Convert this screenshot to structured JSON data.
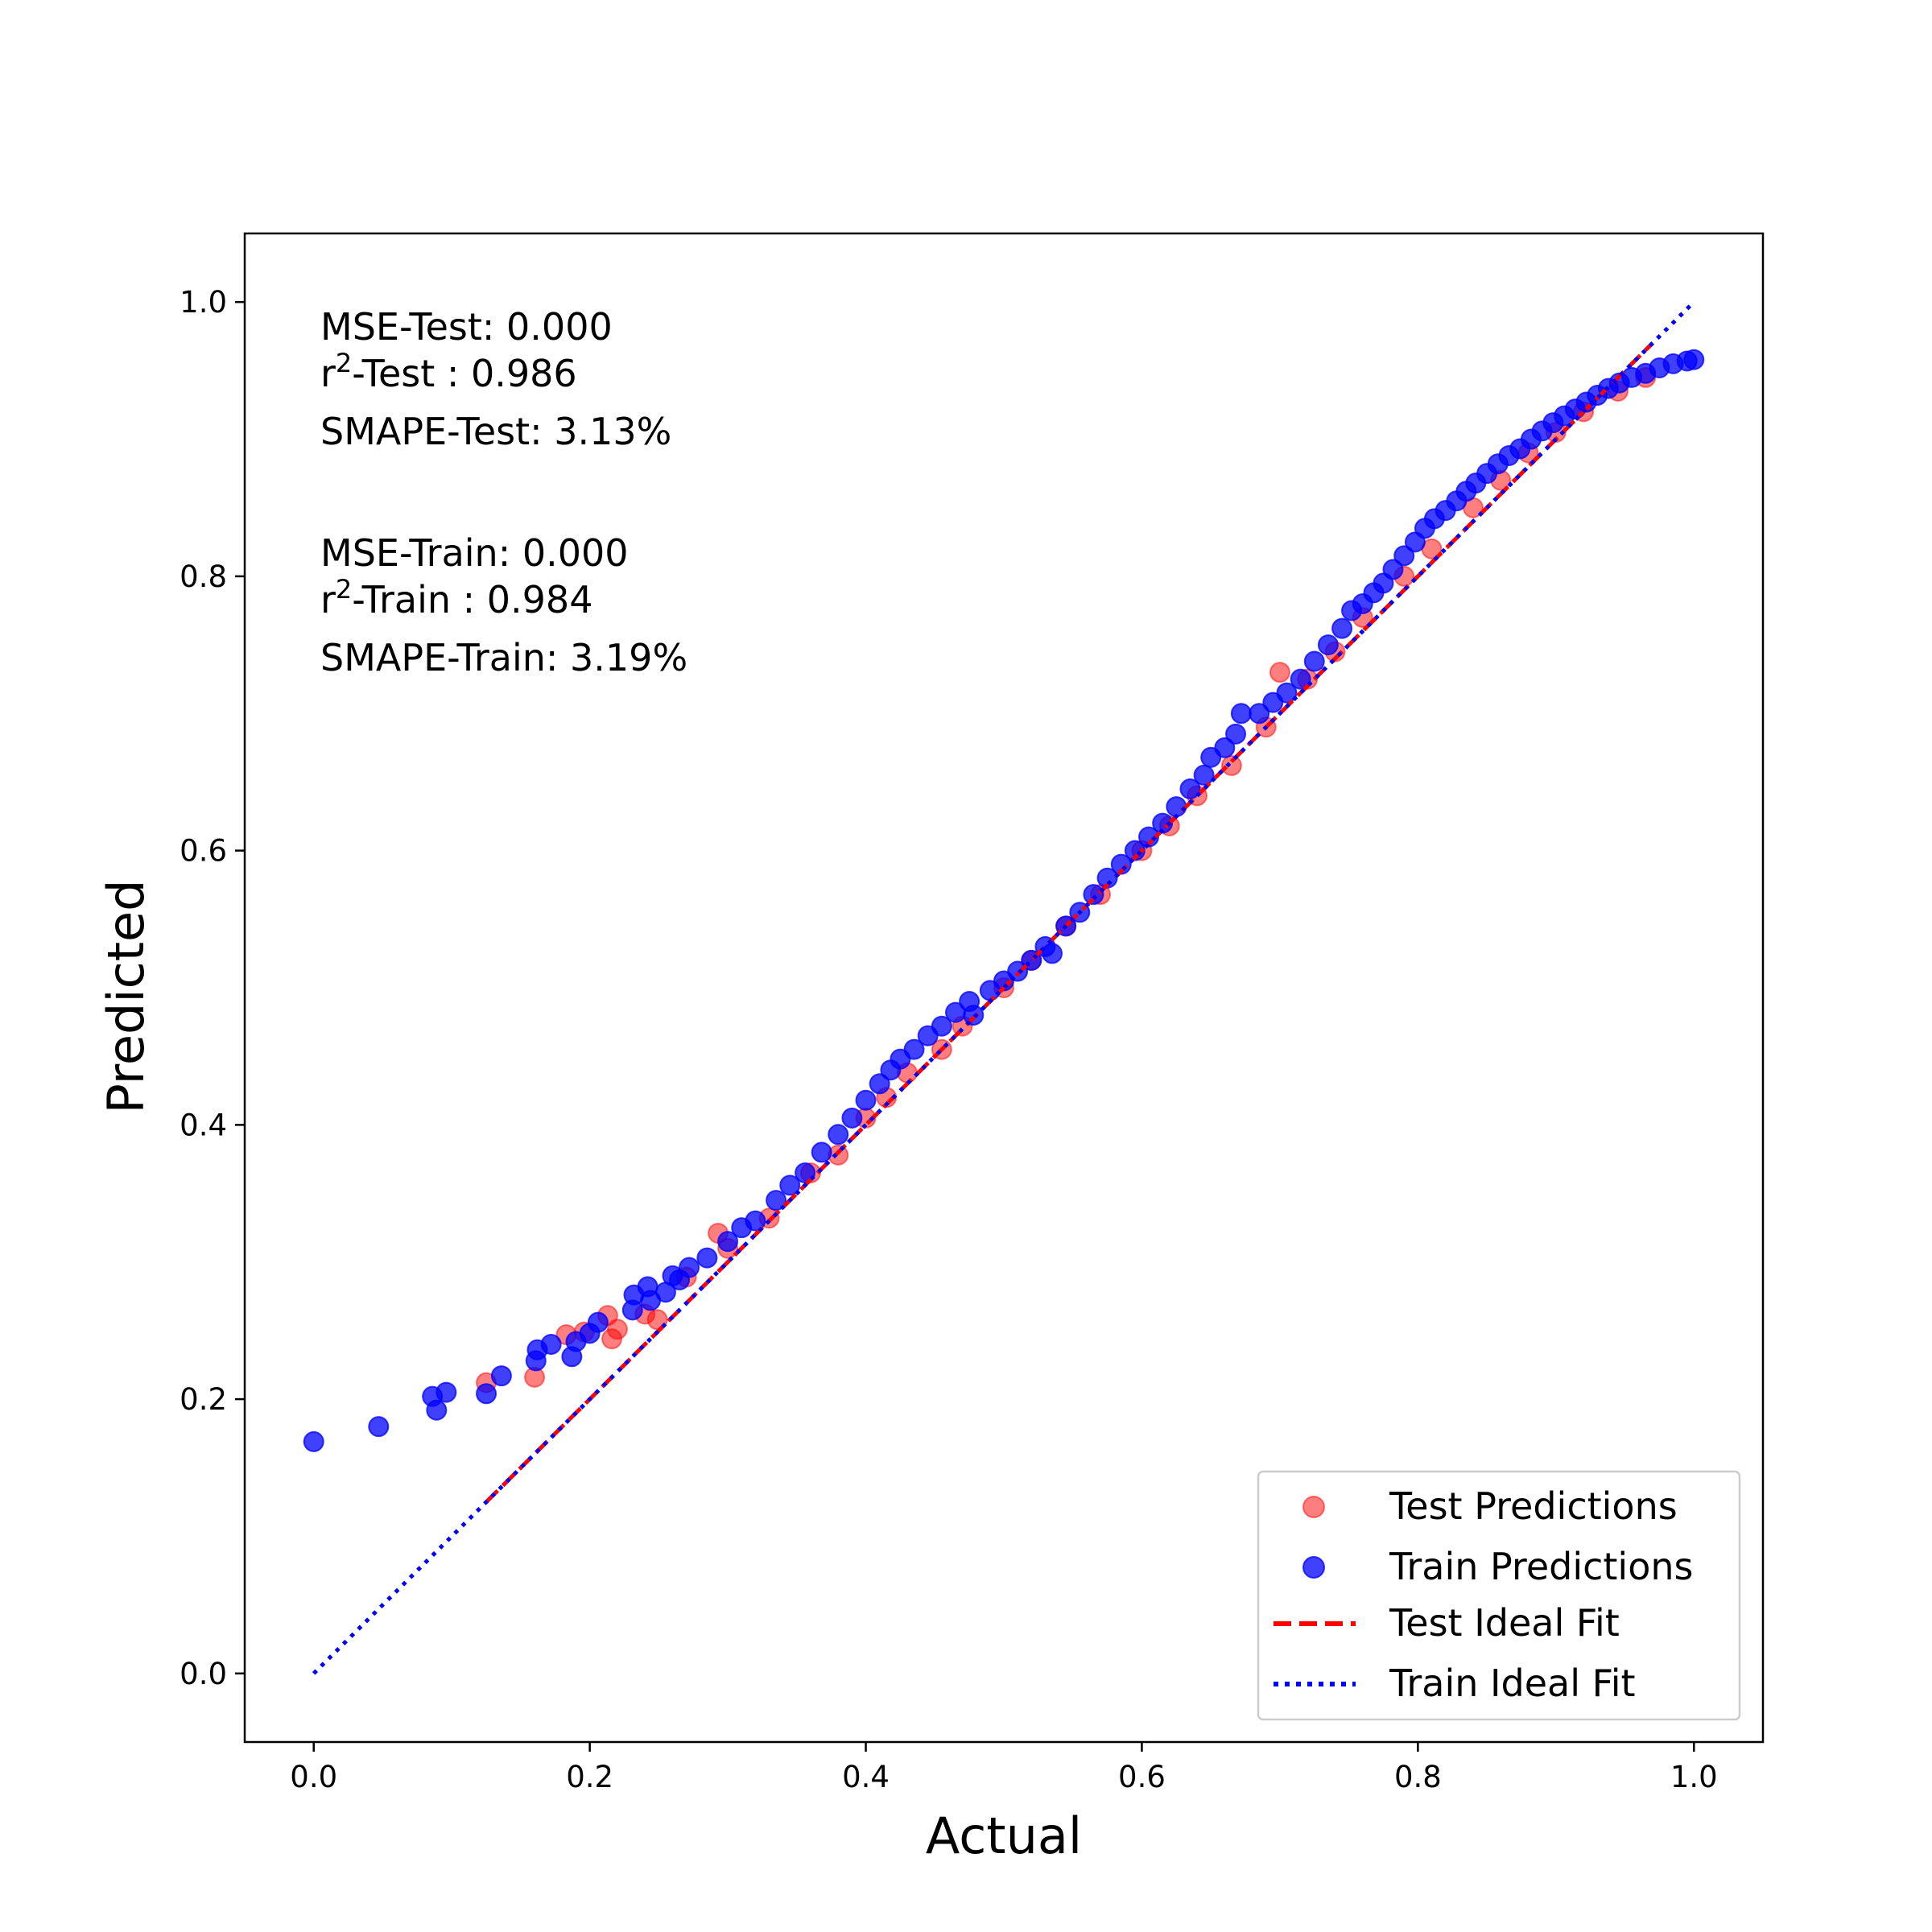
{
  "chart_data": {
    "type": "scatter",
    "xlabel": "Actual",
    "ylabel": "Predicted",
    "xlim": [
      -0.05,
      1.05
    ],
    "ylim": [
      -0.05,
      1.05
    ],
    "xticks": [
      "0.0",
      "0.2",
      "0.4",
      "0.6",
      "0.8",
      "1.0"
    ],
    "yticks": [
      "0.0",
      "0.2",
      "0.4",
      "0.6",
      "0.8",
      "1.0"
    ],
    "grid": false,
    "legend_placement": "lower-right",
    "annotations": {
      "mse_test": "MSE-Test: 0.000",
      "r2_test_prefix": "r",
      "r2_test_sup": "2",
      "r2_test_suffix": "-Test : 0.986",
      "smape_test": "SMAPE-Test: 3.13%",
      "mse_train": "MSE-Train: 0.000",
      "r2_train_prefix": "r",
      "r2_train_sup": "2",
      "r2_train_suffix": "-Train : 0.984",
      "smape_train": "SMAPE-Train: 3.19%"
    },
    "series": [
      {
        "name": "Test Predictions",
        "kind": "scatter",
        "color": "#ff0000",
        "opacity": 0.5,
        "points": [
          [
            0.125,
            0.212
          ],
          [
            0.16,
            0.216
          ],
          [
            0.183,
            0.247
          ],
          [
            0.196,
            0.249
          ],
          [
            0.213,
            0.261
          ],
          [
            0.216,
            0.244
          ],
          [
            0.22,
            0.251
          ],
          [
            0.24,
            0.262
          ],
          [
            0.249,
            0.258
          ],
          [
            0.27,
            0.289
          ],
          [
            0.293,
            0.321
          ],
          [
            0.3,
            0.31
          ],
          [
            0.33,
            0.332
          ],
          [
            0.36,
            0.365
          ],
          [
            0.38,
            0.378
          ],
          [
            0.4,
            0.405
          ],
          [
            0.415,
            0.42
          ],
          [
            0.43,
            0.438
          ],
          [
            0.455,
            0.455
          ],
          [
            0.47,
            0.472
          ],
          [
            0.5,
            0.5
          ],
          [
            0.52,
            0.52
          ],
          [
            0.545,
            0.545
          ],
          [
            0.57,
            0.568
          ],
          [
            0.6,
            0.6
          ],
          [
            0.62,
            0.618
          ],
          [
            0.64,
            0.64
          ],
          [
            0.665,
            0.662
          ],
          [
            0.69,
            0.69
          ],
          [
            0.7,
            0.73
          ],
          [
            0.72,
            0.725
          ],
          [
            0.74,
            0.745
          ],
          [
            0.76,
            0.77
          ],
          [
            0.79,
            0.8
          ],
          [
            0.81,
            0.82
          ],
          [
            0.84,
            0.85
          ],
          [
            0.86,
            0.87
          ],
          [
            0.88,
            0.89
          ],
          [
            0.9,
            0.905
          ],
          [
            0.92,
            0.92
          ],
          [
            0.945,
            0.935
          ],
          [
            0.965,
            0.945
          ]
        ]
      },
      {
        "name": "Train Predictions",
        "kind": "scatter",
        "color": "#0000ff",
        "opacity": 0.75,
        "points": [
          [
            0.0,
            0.169
          ],
          [
            0.047,
            0.18
          ],
          [
            0.086,
            0.202
          ],
          [
            0.089,
            0.192
          ],
          [
            0.096,
            0.205
          ],
          [
            0.125,
            0.204
          ],
          [
            0.136,
            0.217
          ],
          [
            0.161,
            0.228
          ],
          [
            0.162,
            0.236
          ],
          [
            0.172,
            0.24
          ],
          [
            0.187,
            0.231
          ],
          [
            0.19,
            0.242
          ],
          [
            0.2,
            0.248
          ],
          [
            0.206,
            0.256
          ],
          [
            0.231,
            0.265
          ],
          [
            0.232,
            0.276
          ],
          [
            0.242,
            0.282
          ],
          [
            0.244,
            0.272
          ],
          [
            0.255,
            0.278
          ],
          [
            0.26,
            0.29
          ],
          [
            0.265,
            0.287
          ],
          [
            0.272,
            0.296
          ],
          [
            0.285,
            0.303
          ],
          [
            0.3,
            0.315
          ],
          [
            0.31,
            0.325
          ],
          [
            0.32,
            0.33
          ],
          [
            0.335,
            0.345
          ],
          [
            0.345,
            0.356
          ],
          [
            0.356,
            0.365
          ],
          [
            0.368,
            0.38
          ],
          [
            0.38,
            0.393
          ],
          [
            0.39,
            0.405
          ],
          [
            0.4,
            0.418
          ],
          [
            0.41,
            0.43
          ],
          [
            0.418,
            0.44
          ],
          [
            0.425,
            0.448
          ],
          [
            0.435,
            0.455
          ],
          [
            0.445,
            0.465
          ],
          [
            0.455,
            0.472
          ],
          [
            0.465,
            0.482
          ],
          [
            0.475,
            0.49
          ],
          [
            0.478,
            0.48
          ],
          [
            0.49,
            0.498
          ],
          [
            0.5,
            0.505
          ],
          [
            0.51,
            0.512
          ],
          [
            0.52,
            0.52
          ],
          [
            0.53,
            0.53
          ],
          [
            0.535,
            0.525
          ],
          [
            0.545,
            0.545
          ],
          [
            0.555,
            0.555
          ],
          [
            0.565,
            0.568
          ],
          [
            0.575,
            0.58
          ],
          [
            0.585,
            0.59
          ],
          [
            0.595,
            0.6
          ],
          [
            0.605,
            0.61
          ],
          [
            0.615,
            0.62
          ],
          [
            0.625,
            0.632
          ],
          [
            0.635,
            0.645
          ],
          [
            0.645,
            0.655
          ],
          [
            0.65,
            0.668
          ],
          [
            0.66,
            0.675
          ],
          [
            0.668,
            0.685
          ],
          [
            0.672,
            0.7
          ],
          [
            0.685,
            0.7
          ],
          [
            0.695,
            0.708
          ],
          [
            0.705,
            0.715
          ],
          [
            0.715,
            0.725
          ],
          [
            0.725,
            0.738
          ],
          [
            0.735,
            0.75
          ],
          [
            0.745,
            0.762
          ],
          [
            0.752,
            0.775
          ],
          [
            0.76,
            0.78
          ],
          [
            0.768,
            0.788
          ],
          [
            0.775,
            0.795
          ],
          [
            0.782,
            0.805
          ],
          [
            0.79,
            0.815
          ],
          [
            0.798,
            0.825
          ],
          [
            0.805,
            0.835
          ],
          [
            0.812,
            0.842
          ],
          [
            0.82,
            0.848
          ],
          [
            0.828,
            0.855
          ],
          [
            0.835,
            0.862
          ],
          [
            0.842,
            0.868
          ],
          [
            0.85,
            0.875
          ],
          [
            0.858,
            0.882
          ],
          [
            0.866,
            0.888
          ],
          [
            0.874,
            0.893
          ],
          [
            0.882,
            0.9
          ],
          [
            0.89,
            0.906
          ],
          [
            0.898,
            0.912
          ],
          [
            0.906,
            0.917
          ],
          [
            0.914,
            0.922
          ],
          [
            0.922,
            0.927
          ],
          [
            0.93,
            0.932
          ],
          [
            0.938,
            0.937
          ],
          [
            0.946,
            0.941
          ],
          [
            0.955,
            0.945
          ],
          [
            0.965,
            0.948
          ],
          [
            0.975,
            0.952
          ],
          [
            0.985,
            0.955
          ],
          [
            0.995,
            0.957
          ],
          [
            1.0,
            0.958
          ]
        ]
      },
      {
        "name": "Test Ideal Fit",
        "kind": "line",
        "style": "dashed",
        "color": "#ff0000",
        "x": [
          0.125,
          0.97
        ],
        "y": [
          0.125,
          0.97
        ]
      },
      {
        "name": "Train Ideal Fit",
        "kind": "line",
        "style": "dotted",
        "color": "#0000ff",
        "x": [
          0.0,
          1.0
        ],
        "y": [
          0.0,
          1.0
        ]
      }
    ]
  }
}
